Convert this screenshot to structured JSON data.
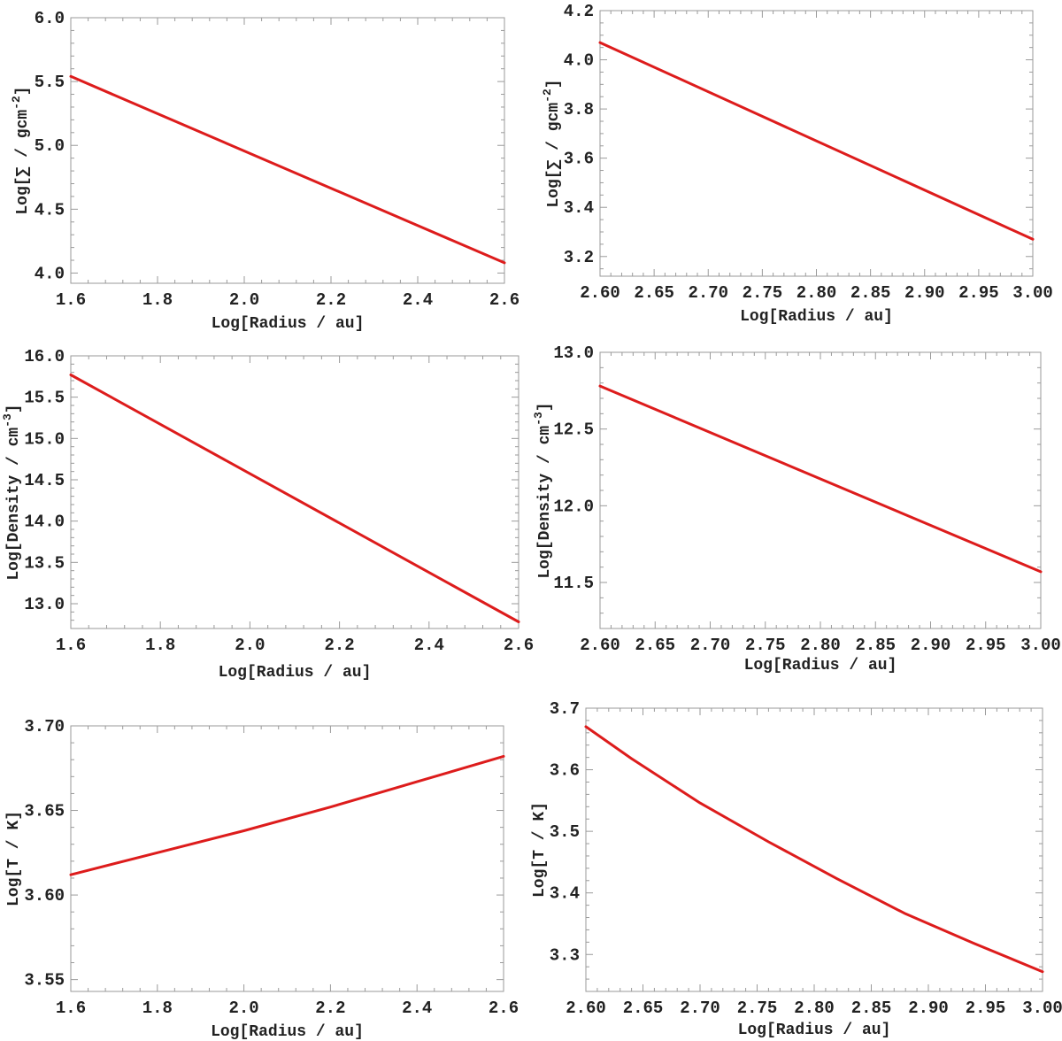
{
  "chart_data": [
    {
      "type": "line",
      "title": "",
      "xlabel": "Log[Radius / au]",
      "ylabel_base": "Log[∑ / gcm",
      "ylabel_sup": "-2",
      "ylabel_end": "]",
      "xlim": [
        1.6,
        2.6
      ],
      "ylim": [
        3.92,
        6.0
      ],
      "xticks": [
        1.6,
        1.8,
        2.0,
        2.2,
        2.4,
        2.6
      ],
      "xtick_labels": [
        "1.6",
        "1.8",
        "2.0",
        "2.2",
        "2.4",
        "2.6"
      ],
      "yticks": [
        4.0,
        4.5,
        5.0,
        5.5,
        6.0
      ],
      "ytick_labels": [
        "4.0",
        "4.5",
        "5.0",
        "5.5",
        "6.0"
      ],
      "xminor": 0.04,
      "yminor": 0.1,
      "series": [
        {
          "name": "Sigma",
          "color": "#dd1c1c",
          "x": [
            1.6,
            2.6
          ],
          "y": [
            5.54,
            4.08
          ]
        }
      ]
    },
    {
      "type": "line",
      "title": "",
      "xlabel": "Log[Radius / au]",
      "ylabel_base": "Log[∑ / gcm",
      "ylabel_sup": "-2",
      "ylabel_end": "]",
      "xlim": [
        2.6,
        3.0
      ],
      "ylim": [
        3.12,
        4.2
      ],
      "xticks": [
        2.6,
        2.65,
        2.7,
        2.75,
        2.8,
        2.85,
        2.9,
        2.95,
        3.0
      ],
      "xtick_labels": [
        "2.60",
        "2.65",
        "2.70",
        "2.75",
        "2.80",
        "2.85",
        "2.90",
        "2.95",
        "3.00"
      ],
      "yticks": [
        3.2,
        3.4,
        3.6,
        3.8,
        4.0,
        4.2
      ],
      "ytick_labels": [
        "3.2",
        "3.4",
        "3.6",
        "3.8",
        "4.0",
        "4.2"
      ],
      "xminor": 0.01,
      "yminor": 0.05,
      "series": [
        {
          "name": "Sigma",
          "color": "#dd1c1c",
          "x": [
            2.6,
            3.0
          ],
          "y": [
            4.07,
            3.27
          ]
        }
      ]
    },
    {
      "type": "line",
      "title": "",
      "xlabel": "Log[Radius / au]",
      "ylabel_base": "Log[Density / cm",
      "ylabel_sup": "-3",
      "ylabel_end": "]",
      "xlim": [
        1.6,
        2.6
      ],
      "ylim": [
        12.7,
        16.0
      ],
      "xticks": [
        1.6,
        1.8,
        2.0,
        2.2,
        2.4,
        2.6
      ],
      "xtick_labels": [
        "1.6",
        "1.8",
        "2.0",
        "2.2",
        "2.4",
        "2.6"
      ],
      "yticks": [
        13.0,
        13.5,
        14.0,
        14.5,
        15.0,
        15.5,
        16.0
      ],
      "ytick_labels": [
        "13.0",
        "13.5",
        "14.0",
        "14.5",
        "15.0",
        "15.5",
        "16.0"
      ],
      "xminor": 0.04,
      "yminor": 0.1,
      "series": [
        {
          "name": "Density",
          "color": "#dd1c1c",
          "x": [
            1.6,
            2.6
          ],
          "y": [
            15.77,
            12.78
          ]
        }
      ]
    },
    {
      "type": "line",
      "title": "",
      "xlabel": "Log[Radius / au]",
      "ylabel_base": "Log[Density / cm",
      "ylabel_sup": "-3",
      "ylabel_end": "]",
      "xlim": [
        2.6,
        3.0
      ],
      "ylim": [
        11.2,
        13.0
      ],
      "xticks": [
        2.6,
        2.65,
        2.7,
        2.75,
        2.8,
        2.85,
        2.9,
        2.95,
        3.0
      ],
      "xtick_labels": [
        "2.60",
        "2.65",
        "2.70",
        "2.75",
        "2.80",
        "2.85",
        "2.90",
        "2.95",
        "3.00"
      ],
      "yticks": [
        11.5,
        12.0,
        12.5,
        13.0
      ],
      "ytick_labels": [
        "11.5",
        "12.0",
        "12.5",
        "13.0"
      ],
      "xminor": 0.01,
      "yminor": 0.1,
      "series": [
        {
          "name": "Density",
          "color": "#dd1c1c",
          "x": [
            2.6,
            3.0
          ],
          "y": [
            12.78,
            11.57
          ]
        }
      ]
    },
    {
      "type": "line",
      "title": "",
      "xlabel": "Log[Radius / au]",
      "ylabel_base": "Log[T / K",
      "ylabel_sup": "",
      "ylabel_end": "]",
      "xlim": [
        1.6,
        2.6
      ],
      "ylim": [
        3.543,
        3.7
      ],
      "xticks": [
        1.6,
        1.8,
        2.0,
        2.2,
        2.4,
        2.6
      ],
      "xtick_labels": [
        "1.6",
        "1.8",
        "2.0",
        "2.2",
        "2.4",
        "2.6"
      ],
      "yticks": [
        3.55,
        3.6,
        3.65,
        3.7
      ],
      "ytick_labels": [
        "3.55",
        "3.60",
        "3.65",
        "3.70"
      ],
      "xminor": 0.04,
      "yminor": 0.01,
      "series": [
        {
          "name": "Temperature",
          "color": "#dd1c1c",
          "x": [
            1.6,
            1.8,
            2.0,
            2.2,
            2.4,
            2.6
          ],
          "y": [
            3.612,
            3.625,
            3.638,
            3.652,
            3.667,
            3.682
          ]
        }
      ]
    },
    {
      "type": "line",
      "title": "",
      "xlabel": "Log[Radius / au]",
      "ylabel_base": "Log[T / K",
      "ylabel_sup": "",
      "ylabel_end": "]",
      "xlim": [
        2.6,
        3.0
      ],
      "ylim": [
        3.24,
        3.7
      ],
      "xticks": [
        2.6,
        2.65,
        2.7,
        2.75,
        2.8,
        2.85,
        2.9,
        2.95,
        3.0
      ],
      "xtick_labels": [
        "2.60",
        "2.65",
        "2.70",
        "2.75",
        "2.80",
        "2.85",
        "2.90",
        "2.95",
        "3.00"
      ],
      "yticks": [
        3.3,
        3.4,
        3.5,
        3.6,
        3.7
      ],
      "ytick_labels": [
        "3.3",
        "3.4",
        "3.5",
        "3.6",
        "3.7"
      ],
      "xminor": 0.01,
      "yminor": 0.02,
      "series": [
        {
          "name": "Temperature",
          "color": "#dd1c1c",
          "x": [
            2.6,
            2.64,
            2.7,
            2.76,
            2.82,
            2.88,
            2.94,
            3.0
          ],
          "y": [
            3.67,
            3.618,
            3.546,
            3.483,
            3.423,
            3.366,
            3.318,
            3.272
          ]
        }
      ]
    }
  ]
}
